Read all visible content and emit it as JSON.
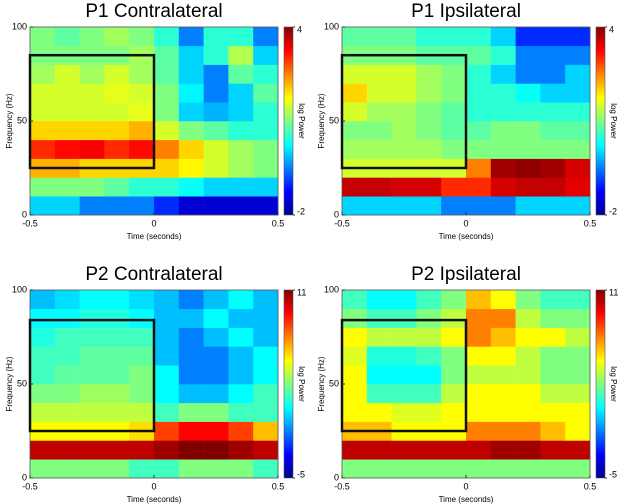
{
  "chart_data": [
    {
      "type": "heatmap",
      "title": "P1 Contralateral",
      "x_label": "Time (seconds)",
      "y_label": "Frequency (Hz)",
      "colorbar_label": "log Power",
      "xlim": [
        -0.5,
        0.5
      ],
      "xticks": [
        -0.5,
        0,
        0.5
      ],
      "ylim": [
        0,
        100
      ],
      "yticks": [
        0,
        50,
        100
      ],
      "clim": [
        -2,
        4
      ],
      "cticks": [
        -2,
        4
      ],
      "x": [
        -0.45,
        -0.35,
        -0.25,
        -0.15,
        -0.05,
        0.05,
        0.15,
        0.25,
        0.35,
        0.45
      ],
      "y": [
        5,
        15,
        25,
        35,
        45,
        55,
        65,
        75,
        85,
        95
      ],
      "values": [
        [
          0,
          0,
          -0.5,
          -0.5,
          -0.5,
          -1,
          -1.5,
          -1.5,
          -1.5,
          -1.5
        ],
        [
          1,
          1,
          1,
          0.8,
          0.5,
          0.5,
          0.3,
          0,
          0,
          0
        ],
        [
          2.2,
          2.2,
          2,
          2,
          2,
          2,
          1.8,
          1.5,
          1.2,
          1
        ],
        [
          3,
          3.2,
          3.3,
          3,
          3.2,
          2.5,
          2,
          1.5,
          1.2,
          1
        ],
        [
          2,
          2,
          2,
          2,
          2.2,
          1.5,
          1,
          0.8,
          0.5,
          0.5
        ],
        [
          1.5,
          1.5,
          1.5,
          1.5,
          1.6,
          1,
          0,
          -0.2,
          0,
          0.5
        ],
        [
          1.5,
          1.5,
          1.5,
          1.6,
          1.5,
          1,
          0.2,
          -0.5,
          0,
          0.8
        ],
        [
          1.2,
          1.5,
          1.2,
          1.5,
          1.2,
          0.8,
          0,
          -0.5,
          0.8,
          0.5
        ],
        [
          1,
          1,
          1,
          1,
          1.2,
          0.8,
          0,
          0.5,
          1.3,
          0
        ],
        [
          1,
          0.8,
          1,
          1.2,
          1,
          0.5,
          -0.5,
          0.5,
          0.5,
          -0.5
        ]
      ],
      "box": {
        "x": [
          -0.5,
          0
        ],
        "y": [
          25,
          85
        ]
      }
    },
    {
      "type": "heatmap",
      "title": "P1 Ipsilateral",
      "x_label": "Time (seconds)",
      "y_label": "Frequency (Hz)",
      "colorbar_label": "log Power",
      "xlim": [
        -0.5,
        0.5
      ],
      "xticks": [
        -0.5,
        0,
        0.5
      ],
      "ylim": [
        0,
        100
      ],
      "yticks": [
        0,
        50,
        100
      ],
      "clim": [
        -2,
        4
      ],
      "cticks": [
        -2,
        4
      ],
      "x": [
        -0.45,
        -0.35,
        -0.25,
        -0.15,
        -0.05,
        0.05,
        0.15,
        0.25,
        0.35,
        0.45
      ],
      "y": [
        5,
        15,
        25,
        35,
        45,
        55,
        65,
        75,
        85,
        95
      ],
      "values": [
        [
          0,
          0,
          0,
          0,
          -0.5,
          -0.5,
          -0.5,
          0,
          0,
          0
        ],
        [
          3.6,
          3.6,
          3.5,
          3.5,
          3,
          3,
          3.5,
          3.6,
          3.6,
          3.4
        ],
        [
          1.5,
          1.5,
          1.5,
          1.5,
          1.5,
          2.5,
          3.8,
          3.9,
          3.8,
          3.5
        ],
        [
          1.2,
          1.2,
          1.2,
          1.2,
          1,
          1,
          1,
          1,
          1,
          1
        ],
        [
          1,
          1,
          1.2,
          1,
          0.8,
          0.8,
          1,
          1,
          0.8,
          0.8
        ],
        [
          1.5,
          1.2,
          1.2,
          1,
          0.8,
          0.5,
          0.5,
          0.5,
          0.5,
          0.5
        ],
        [
          2,
          1.5,
          1.5,
          1.2,
          1,
          0.5,
          0.5,
          0.3,
          0,
          0
        ],
        [
          1.5,
          1.5,
          1.5,
          1.2,
          1,
          0.5,
          0,
          -0.5,
          -0.5,
          0
        ],
        [
          1,
          1,
          1,
          0.8,
          0.8,
          0.8,
          0.5,
          -0.5,
          -0.5,
          -0.5
        ],
        [
          0.8,
          0.8,
          0.8,
          0.5,
          0.5,
          0.5,
          0,
          -1,
          -1,
          -1
        ]
      ],
      "box": {
        "x": [
          -0.5,
          0
        ],
        "y": [
          25,
          85
        ]
      }
    },
    {
      "type": "heatmap",
      "title": "P2 Contralateral",
      "x_label": "Time (seconds)",
      "y_label": "Frequency (Hz)",
      "colorbar_label": "log Power",
      "xlim": [
        -0.5,
        0.5
      ],
      "xticks": [
        -0.5,
        0,
        0.5
      ],
      "ylim": [
        0,
        100
      ],
      "yticks": [
        0,
        50,
        100
      ],
      "clim": [
        -5,
        11
      ],
      "cticks": [
        -5,
        11
      ],
      "x": [
        -0.45,
        -0.35,
        -0.25,
        -0.15,
        -0.05,
        0.05,
        0.15,
        0.25,
        0.35,
        0.45
      ],
      "y": [
        5,
        15,
        25,
        35,
        45,
        55,
        65,
        75,
        85,
        95
      ],
      "values": [
        [
          3,
          3,
          3,
          3,
          2,
          2,
          3,
          3,
          3,
          2
        ],
        [
          10,
          10,
          10,
          10,
          10,
          10.5,
          11,
          11,
          10.5,
          10
        ],
        [
          5,
          5,
          5,
          5,
          5.5,
          8,
          9,
          9,
          8,
          6
        ],
        [
          4,
          4,
          4,
          4,
          4,
          2,
          3,
          3,
          2,
          2
        ],
        [
          3,
          3,
          3.5,
          3.5,
          3,
          1,
          0,
          0,
          1,
          2
        ],
        [
          2,
          2.5,
          2.5,
          2.5,
          3,
          1,
          -1,
          -1,
          0,
          1
        ],
        [
          2,
          2,
          2.5,
          2.5,
          2.5,
          0,
          -1,
          -1,
          0,
          1
        ],
        [
          1.5,
          2,
          2,
          2,
          2,
          0,
          -1,
          0,
          1,
          0
        ],
        [
          1,
          1,
          1.5,
          1.5,
          1,
          0,
          0,
          1,
          0,
          0
        ],
        [
          0,
          0.5,
          1,
          1,
          0.5,
          0,
          -1,
          0,
          1,
          0
        ]
      ],
      "box": {
        "x": [
          -0.5,
          0
        ],
        "y": [
          25,
          84
        ]
      }
    },
    {
      "type": "heatmap",
      "title": "P2 Ipsilateral",
      "x_label": "Time (seconds)",
      "y_label": "Frequency (Hz)",
      "colorbar_label": "log Power",
      "xlim": [
        -0.5,
        0.5
      ],
      "xticks": [
        -0.5,
        0,
        0.5
      ],
      "ylim": [
        0,
        100
      ],
      "yticks": [
        0,
        50,
        100
      ],
      "clim": [
        -5,
        11
      ],
      "cticks": [
        -5,
        11
      ],
      "x": [
        -0.45,
        -0.35,
        -0.25,
        -0.15,
        -0.05,
        0.05,
        0.15,
        0.25,
        0.35,
        0.45
      ],
      "y": [
        5,
        15,
        25,
        35,
        45,
        55,
        65,
        75,
        85,
        95
      ],
      "values": [
        [
          3,
          3,
          3,
          3,
          3,
          3,
          3,
          3,
          3,
          3
        ],
        [
          10,
          10,
          10,
          10,
          10,
          10,
          10.5,
          10.5,
          10,
          10
        ],
        [
          6,
          6,
          5,
          5,
          5,
          7,
          7,
          7,
          6,
          5
        ],
        [
          5,
          5,
          4.5,
          4.5,
          5,
          5,
          5,
          5,
          5,
          5
        ],
        [
          5,
          2,
          2,
          2,
          4,
          5,
          5,
          5,
          4,
          4
        ],
        [
          5,
          1,
          1,
          1,
          3,
          4,
          4,
          4,
          3,
          3
        ],
        [
          4.5,
          1.5,
          1.5,
          2,
          3,
          5,
          5,
          4,
          3,
          3
        ],
        [
          5,
          4,
          4,
          4,
          5,
          7,
          6,
          5,
          5,
          4
        ],
        [
          3,
          2,
          2,
          3,
          4,
          7,
          7,
          4,
          3,
          3
        ],
        [
          2,
          1,
          1,
          2,
          3,
          6,
          5,
          3,
          2,
          2
        ]
      ],
      "box": {
        "x": [
          -0.5,
          0
        ],
        "y": [
          25,
          84
        ]
      }
    }
  ]
}
